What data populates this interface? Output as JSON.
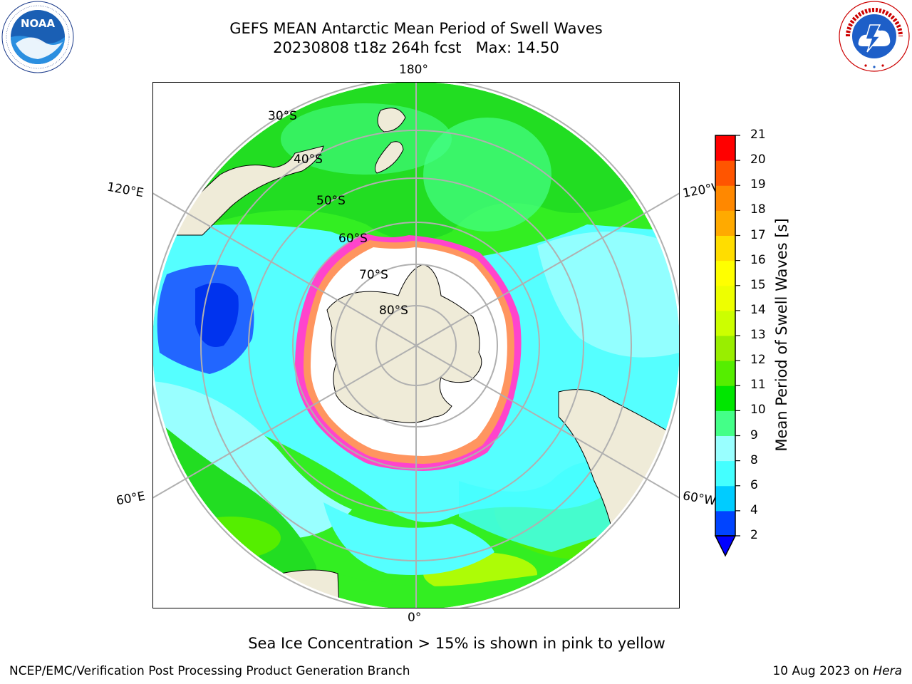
{
  "header": {
    "title_line1": "GEFS MEAN Antarctic Mean Period of Swell Waves",
    "title_line2": "20230808 t18z 264h fcst   Max: 14.50"
  },
  "logos": {
    "left": "NOAA",
    "left_ring_text": "NATIONAL OCEANIC AND ATMOSPHERIC ADMINISTRATION · U.S. DEPARTMENT OF COMMERCE",
    "right_ring_text": "NATIONAL WEATHER SERVICE"
  },
  "map": {
    "projection": "south-polar-stereographic",
    "longitude_labels": {
      "top": "180°",
      "bottom": "0°",
      "left_upper": "120°E",
      "left_lower": "60°E",
      "right_upper": "120°W",
      "right_lower": "60°W"
    },
    "latitude_labels": [
      "30°S",
      "40°S",
      "50°S",
      "60°S",
      "70°S",
      "80°S"
    ],
    "colors": {
      "land": "#efebd8",
      "ice_free_shelf": "#ffffff",
      "graticule": "#b0b0b0",
      "coast": "#000000"
    }
  },
  "colorbar": {
    "label": "Mean Period of Swell Waves [s]",
    "ticks": [
      "2",
      "4",
      "6",
      "8",
      "9",
      "10",
      "11",
      "12",
      "13",
      "14",
      "15",
      "16",
      "17",
      "18",
      "19",
      "20",
      "21"
    ],
    "colors": [
      "#0044ff",
      "#00ccff",
      "#44ffff",
      "#99ffff",
      "#44ff88",
      "#00e600",
      "#55ee00",
      "#99ee00",
      "#ccff00",
      "#eeff00",
      "#ffff00",
      "#ffdd00",
      "#ffaa00",
      "#ff8800",
      "#ff5500",
      "#ff0000"
    ],
    "under_color": "#0000ff"
  },
  "note": "Sea Ice Concentration > 15% is shown in pink to yellow",
  "footer": {
    "left": "NCEP/EMC/Verification Post Processing Product Generation Branch",
    "right_date": "10 Aug 2023 on ",
    "right_host": "Hera"
  }
}
